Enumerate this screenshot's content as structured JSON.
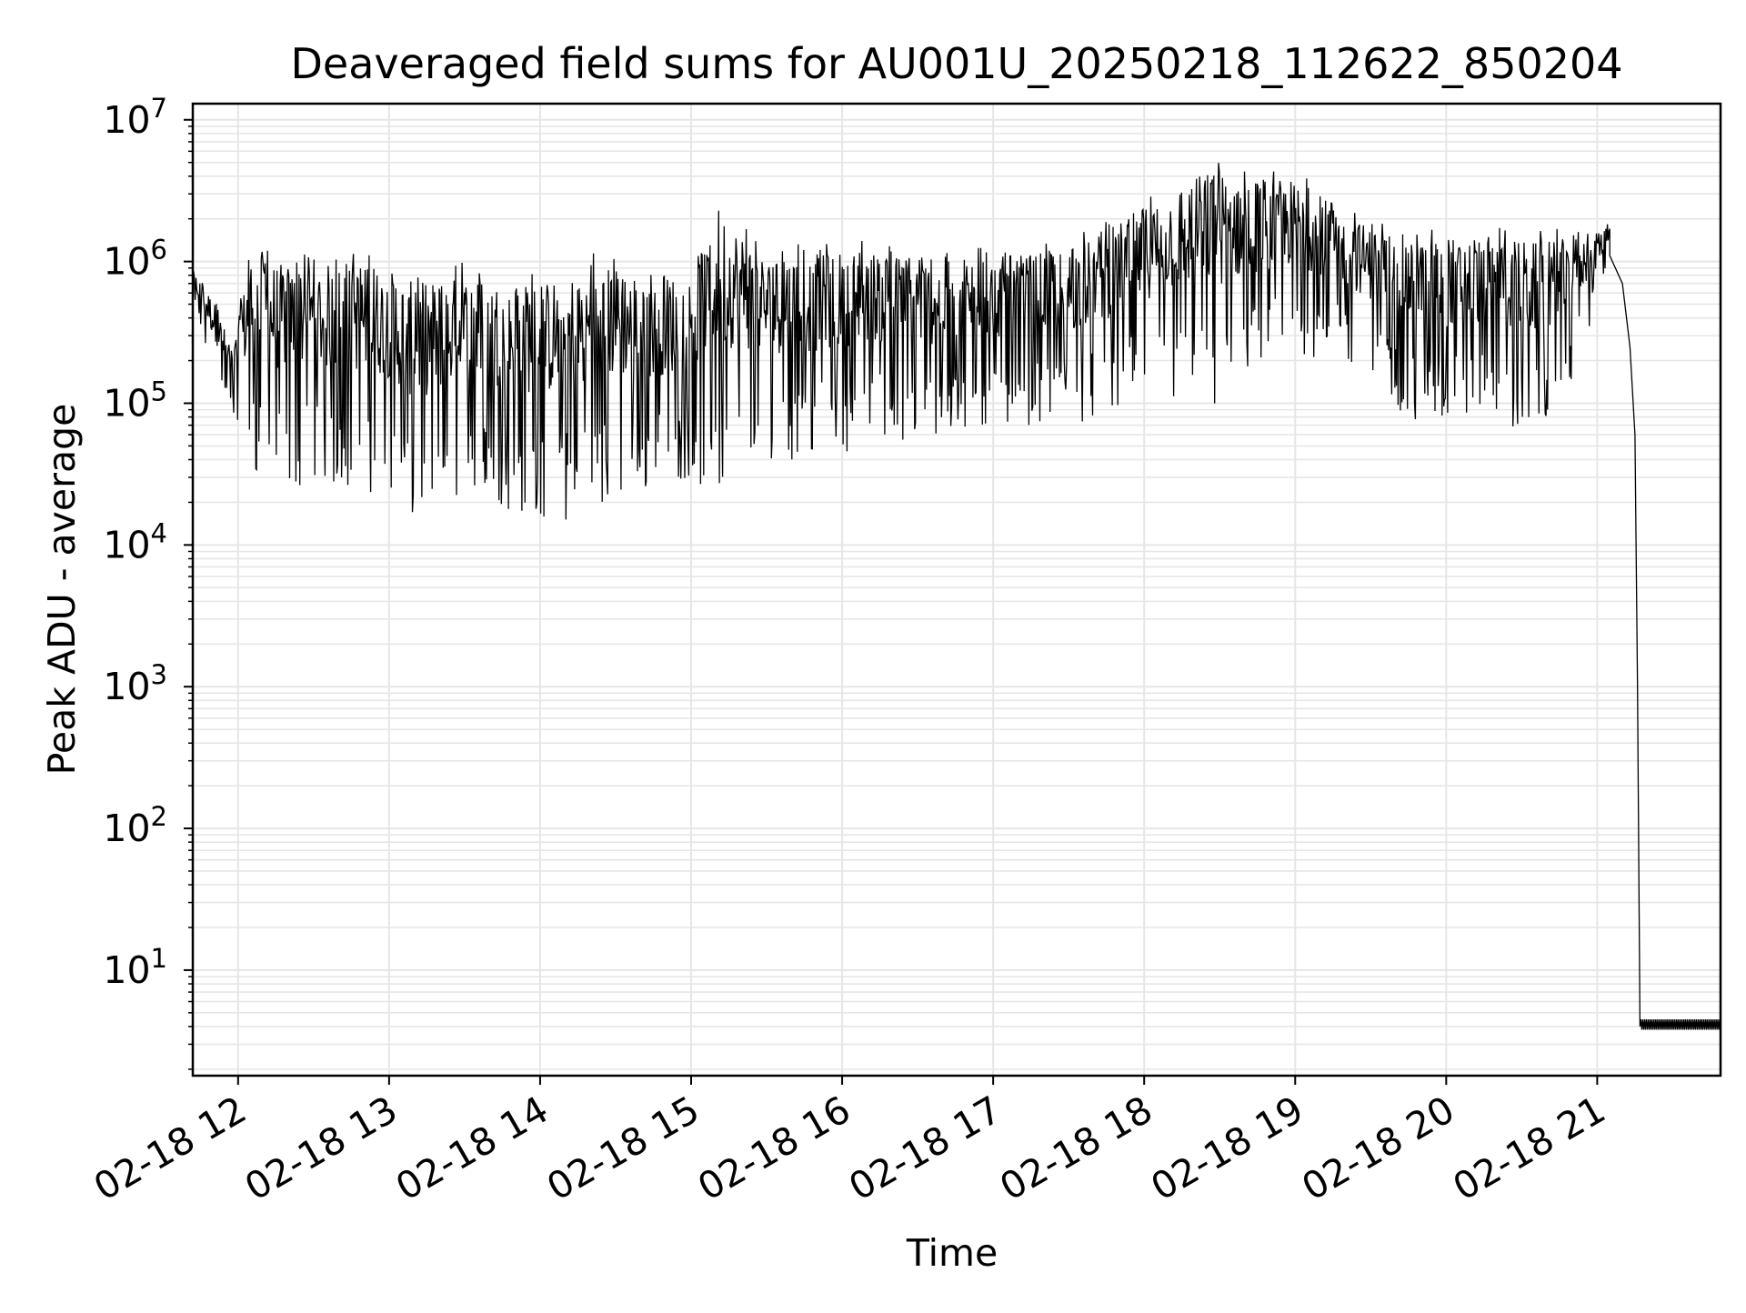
{
  "chart_data": {
    "type": "line",
    "title": "Deaveraged field sums for AU001U_20250218_112622_850204",
    "xlabel": "Time",
    "ylabel": "Peak ADU - average",
    "yscale": "log",
    "ylim": [
      1.8,
      13000000
    ],
    "xlim": [
      "2025-02-18 11:42",
      "2025-02-18 21:49"
    ],
    "grid": true,
    "line_color": "#000000",
    "grid_color": "#e6e6e6",
    "x_tick_labels": [
      "02-18 12",
      "02-18 13",
      "02-18 14",
      "02-18 15",
      "02-18 16",
      "02-18 17",
      "02-18 18",
      "02-18 19",
      "02-18 20",
      "02-18 21"
    ],
    "x_ticks": [
      "2025-02-18 12:00",
      "2025-02-18 13:00",
      "2025-02-18 14:00",
      "2025-02-18 15:00",
      "2025-02-18 16:00",
      "2025-02-18 17:00",
      "2025-02-18 18:00",
      "2025-02-18 19:00",
      "2025-02-18 20:00",
      "2025-02-18 21:00"
    ],
    "y_ticks": [
      {
        "value": 10,
        "base": "10",
        "exp": "1"
      },
      {
        "value": 100,
        "base": "10",
        "exp": "2"
      },
      {
        "value": 1000,
        "base": "10",
        "exp": "3"
      },
      {
        "value": 10000,
        "base": "10",
        "exp": "4"
      },
      {
        "value": 100000,
        "base": "10",
        "exp": "5"
      },
      {
        "value": 1000000,
        "base": "10",
        "exp": "6"
      },
      {
        "value": 10000000,
        "base": "10",
        "exp": "7"
      }
    ],
    "series": [
      {
        "note_values": "Approximate envelope of a dense, noisy time series: [time, lower, upper] per point.",
        "envelope": [
          [
            "2025-02-18 11:42",
            500000,
            900000
          ],
          [
            "2025-02-18 11:50",
            150000,
            600000
          ],
          [
            "2025-02-18 11:58",
            80000,
            250000
          ],
          [
            "2025-02-18 12:05",
            30000,
            1500000
          ],
          [
            "2025-02-18 12:15",
            25000,
            1200000
          ],
          [
            "2025-02-18 12:30",
            25000,
            1200000
          ],
          [
            "2025-02-18 12:45",
            25000,
            1200000
          ],
          [
            "2025-02-18 13:00",
            22000,
            1100000
          ],
          [
            "2025-02-18 13:10",
            13000,
            900000
          ],
          [
            "2025-02-18 13:30",
            20000,
            1000000
          ],
          [
            "2025-02-18 13:50",
            17000,
            900000
          ],
          [
            "2025-02-18 14:00",
            15000,
            900000
          ],
          [
            "2025-02-18 14:15",
            14000,
            1100000
          ],
          [
            "2025-02-18 14:30",
            20000,
            1200000
          ],
          [
            "2025-02-18 14:45",
            25000,
            1000000
          ],
          [
            "2025-02-18 15:00",
            30000,
            1000000
          ],
          [
            "2025-02-18 15:10",
            20000,
            3500000
          ],
          [
            "2025-02-18 15:30",
            40000,
            1300000
          ],
          [
            "2025-02-18 15:50",
            40000,
            1400000
          ],
          [
            "2025-02-18 16:10",
            50000,
            1500000
          ],
          [
            "2025-02-18 16:30",
            50000,
            1300000
          ],
          [
            "2025-02-18 16:50",
            60000,
            1300000
          ],
          [
            "2025-02-18 17:10",
            70000,
            1300000
          ],
          [
            "2025-02-18 17:30",
            70000,
            1500000
          ],
          [
            "2025-02-18 17:45",
            80000,
            2000000
          ],
          [
            "2025-02-18 18:00",
            100000,
            3000000
          ],
          [
            "2025-02-18 18:15",
            100000,
            4500000
          ],
          [
            "2025-02-18 18:30",
            80000,
            6000000
          ],
          [
            "2025-02-18 18:45",
            150000,
            5000000
          ],
          [
            "2025-02-18 19:00",
            200000,
            4500000
          ],
          [
            "2025-02-18 19:15",
            200000,
            3000000
          ],
          [
            "2025-02-18 19:30",
            150000,
            2000000
          ],
          [
            "2025-02-18 19:50",
            60000,
            1800000
          ],
          [
            "2025-02-18 20:00",
            70000,
            1800000
          ],
          [
            "2025-02-18 20:20",
            80000,
            1800000
          ],
          [
            "2025-02-18 20:35",
            50000,
            1700000
          ],
          [
            "2025-02-18 20:45",
            80000,
            1700000
          ],
          [
            "2025-02-18 21:00",
            500000,
            1700000
          ],
          [
            "2025-02-18 21:05",
            1100000,
            2000000
          ]
        ],
        "decay": [
          [
            "2025-02-18 21:05",
            1100000
          ],
          [
            "2025-02-18 21:10",
            700000
          ],
          [
            "2025-02-18 21:13",
            250000
          ],
          [
            "2025-02-18 21:15",
            60000
          ],
          [
            "2025-02-18 21:16",
            1000
          ],
          [
            "2025-02-18 21:17",
            4
          ]
        ],
        "floor": {
          "from": "2025-02-18 21:17",
          "to": "2025-02-18 21:49",
          "lower": 3.8,
          "upper": 4.5
        }
      }
    ]
  }
}
